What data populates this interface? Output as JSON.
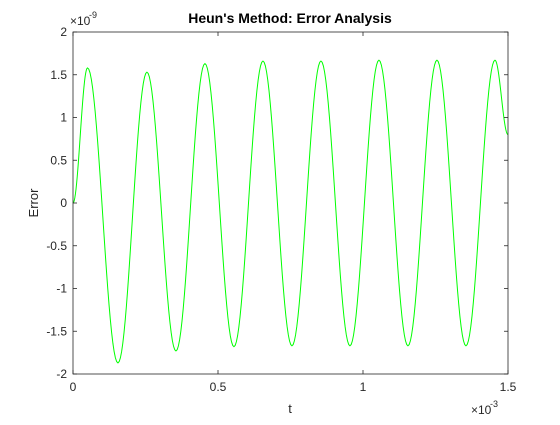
{
  "chart_data": {
    "type": "line",
    "title": "Heun's Method: Error Analysis",
    "xlabel": "t",
    "ylabel": "Error",
    "xlim": [
      0,
      1.5
    ],
    "ylim": [
      -2,
      2
    ],
    "x_multiplier": {
      "base": "×10",
      "exponent": "-3"
    },
    "y_multiplier": {
      "base": "×10",
      "exponent": "-9"
    },
    "x_ticks": [
      {
        "value": 0,
        "label": "0"
      },
      {
        "value": 0.5,
        "label": "0.5"
      },
      {
        "value": 1,
        "label": "1"
      },
      {
        "value": 1.5,
        "label": "1.5"
      }
    ],
    "y_ticks": [
      {
        "value": -2,
        "label": "-2"
      },
      {
        "value": -1.5,
        "label": "-1.5"
      },
      {
        "value": -1,
        "label": "-1"
      },
      {
        "value": -0.5,
        "label": "-0.5"
      },
      {
        "value": 0,
        "label": "0"
      },
      {
        "value": 0.5,
        "label": "0.5"
      },
      {
        "value": 1,
        "label": "1"
      },
      {
        "value": 1.5,
        "label": "1.5"
      },
      {
        "value": 2,
        "label": "2"
      }
    ],
    "grid": false,
    "box": true,
    "series": [
      {
        "color": "#00ff00",
        "x": [
          0,
          0.05,
          0.155,
          0.255,
          0.355,
          0.455,
          0.555,
          0.655,
          0.755,
          0.855,
          0.955,
          1.055,
          1.155,
          1.255,
          1.355,
          1.455,
          1.5
        ],
        "y": [
          0,
          1.58,
          -1.87,
          1.53,
          -1.73,
          1.63,
          -1.68,
          1.66,
          -1.67,
          1.66,
          -1.67,
          1.67,
          -1.67,
          1.67,
          -1.67,
          1.67,
          0.8
        ]
      }
    ]
  }
}
